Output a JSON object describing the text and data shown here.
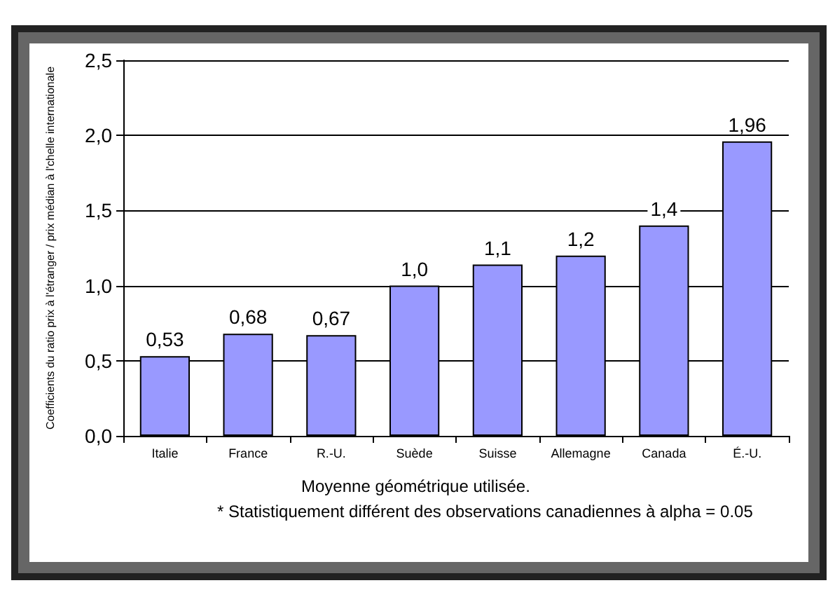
{
  "chart_data": {
    "type": "bar",
    "ylabel": "Coefficients du ratio prix à l'étranger / prix médian à l'chelle internationale",
    "categories": [
      "Italie",
      "France",
      "R.-U.",
      "Suède",
      "Suisse",
      "Allemagne",
      "Canada",
      "É.-U."
    ],
    "values": [
      0.53,
      0.68,
      0.67,
      1.0,
      1.14,
      1.2,
      1.4,
      1.96
    ],
    "value_labels": [
      "0,53",
      "0,68",
      "0,67",
      "1,0",
      "1,1",
      "1,2",
      "1,4",
      "1,96"
    ],
    "color": "#9999ff",
    "ylim": [
      0,
      2.5
    ],
    "yticks": [
      {
        "value": 0,
        "label": "0,0"
      },
      {
        "value": 0.5,
        "label": "0,5"
      },
      {
        "value": 1,
        "label": "1,0"
      },
      {
        "value": 1.5,
        "label": "1,5"
      },
      {
        "value": 2,
        "label": "2,0"
      },
      {
        "value": 2.5,
        "label": "2,5"
      }
    ],
    "grid": "y",
    "annotations": [
      "Moyenne géométrique utilisée.",
      "* Statistiquement différent des observations canadiennes à alpha = 0.05"
    ]
  }
}
